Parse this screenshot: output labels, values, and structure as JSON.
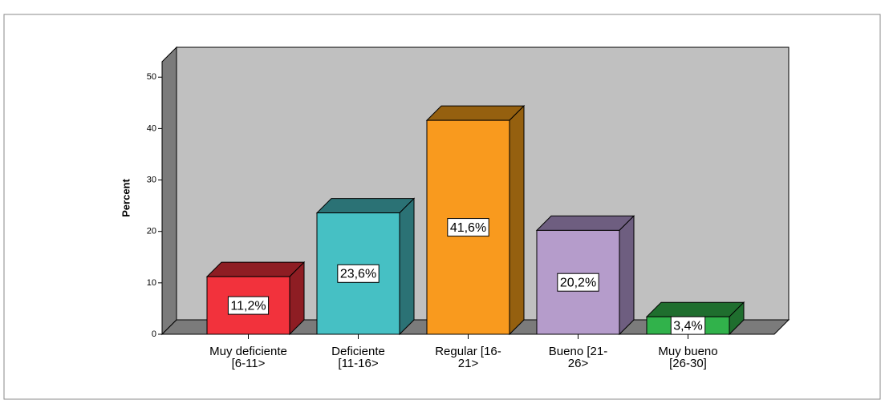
{
  "chart_data": {
    "type": "bar3d",
    "y_label": "Percent",
    "categories": [
      [
        "Muy deficiente",
        "[6-11>"
      ],
      [
        "Deficiente",
        "[11-16>"
      ],
      [
        "Regular [16-",
        "21>"
      ],
      [
        "Bueno [21-",
        "26>"
      ],
      [
        "Muy bueno",
        "[26-30]"
      ]
    ],
    "values": [
      11.2,
      23.6,
      41.6,
      20.2,
      3.4
    ],
    "value_labels": [
      "11,2%",
      "23,6%",
      "41,6%",
      "20,2%",
      "3,4%"
    ],
    "colors": [
      "#f2323c",
      "#46c0c4",
      "#f99a1e",
      "#b59ccb",
      "#31b24b"
    ],
    "side_colors": [
      "#8e1d23",
      "#2b7275",
      "#95600f",
      "#6e5e80",
      "#1f6e2e"
    ],
    "ylim": [
      0,
      53
    ],
    "yticks": [
      0,
      10,
      20,
      30,
      40,
      50
    ]
  }
}
